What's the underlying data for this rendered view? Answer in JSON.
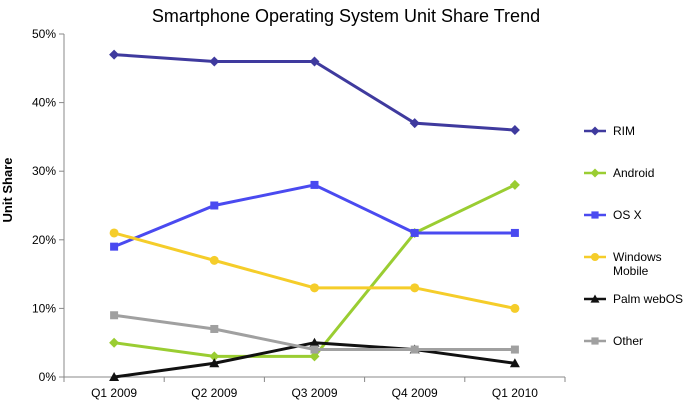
{
  "chart_data": {
    "type": "line",
    "title": "Smartphone Operating System Unit Share Trend",
    "xlabel": "",
    "ylabel": "Unit Share",
    "categories": [
      "Q1 2009",
      "Q2 2009",
      "Q3 2009",
      "Q4 2009",
      "Q1 2010"
    ],
    "ylim": [
      0,
      50
    ],
    "yticks": [
      "0%",
      "10%",
      "20%",
      "30%",
      "40%",
      "50%"
    ],
    "grid": false,
    "legend_position": "right",
    "series": [
      {
        "name": "RIM",
        "values": [
          47,
          46,
          46,
          37,
          36
        ],
        "color": "#3f3a9e",
        "marker": "diamond"
      },
      {
        "name": "Android",
        "values": [
          5,
          3,
          3,
          21,
          28
        ],
        "color": "#9acd32",
        "marker": "diamond"
      },
      {
        "name": "OS X",
        "values": [
          19,
          25,
          28,
          21,
          21
        ],
        "color": "#4a4af0",
        "marker": "square"
      },
      {
        "name": "Windows\nMobile",
        "values": [
          21,
          17,
          13,
          13,
          10
        ],
        "color": "#f5cd2a",
        "marker": "circle"
      },
      {
        "name": "Palm webOS",
        "values": [
          0,
          2,
          5,
          4,
          2
        ],
        "color": "#111111",
        "marker": "triangle"
      },
      {
        "name": "Other",
        "values": [
          9,
          7,
          4,
          4,
          4
        ],
        "color": "#a0a0a0",
        "marker": "square"
      }
    ]
  }
}
